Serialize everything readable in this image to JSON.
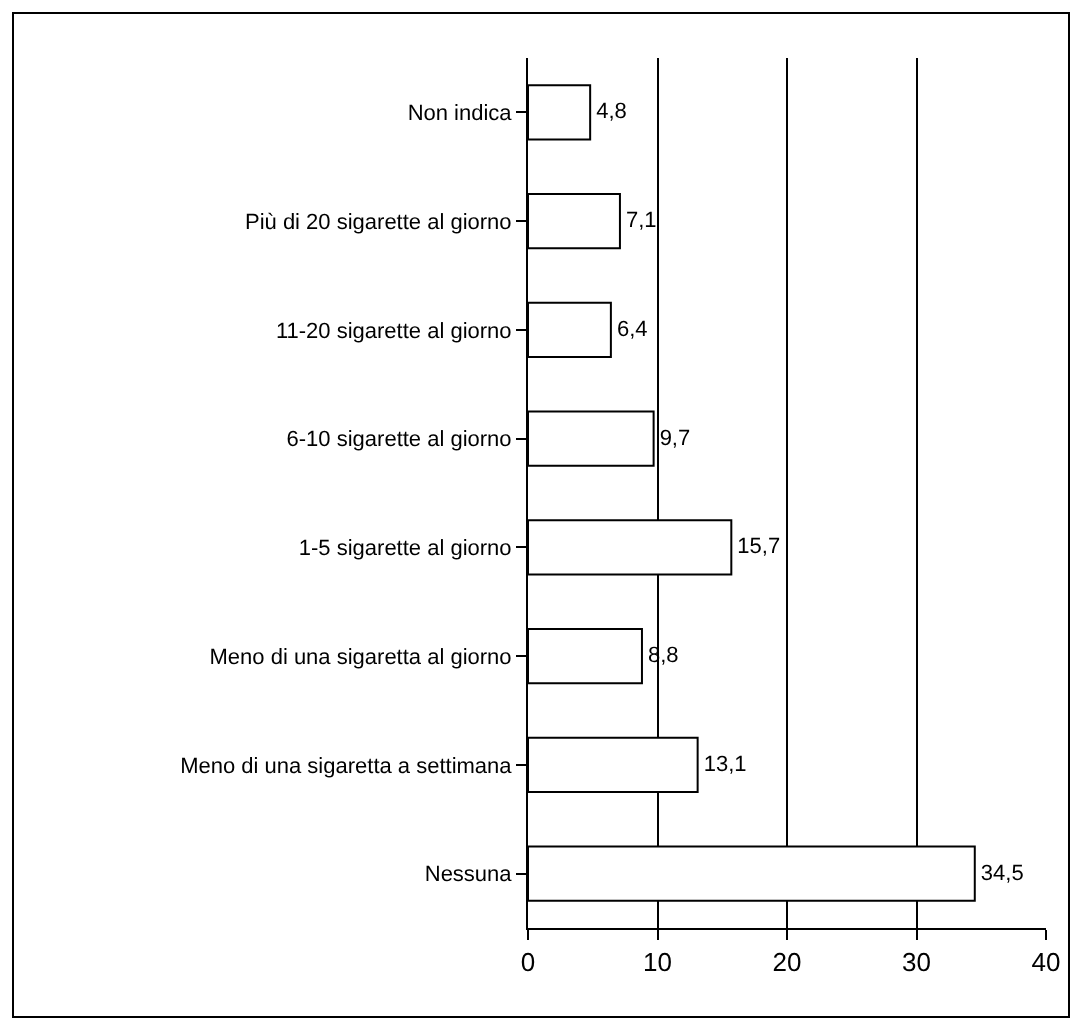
{
  "chart_data": {
    "type": "bar",
    "orientation": "horizontal",
    "categories": [
      "Non indica",
      "Più di 20 sigarette al giorno",
      "11-20 sigarette al giorno",
      "6-10 sigarette al giorno",
      "1-5 sigarette al giorno",
      "Meno di una sigaretta al giorno",
      "Meno di una sigaretta a settimana",
      "Nessuna"
    ],
    "values": [
      4.8,
      7.1,
      6.4,
      9.7,
      15.7,
      8.8,
      13.1,
      34.5
    ],
    "value_labels": [
      "4,8",
      "7,1",
      "6,4",
      "9,7",
      "15,7",
      "8,8",
      "13,1",
      "34,5"
    ],
    "color": "#ffffff",
    "xlim": [
      0,
      40
    ],
    "xticks": [
      0,
      10,
      20,
      30,
      40
    ],
    "grid": "x",
    "legend": false
  }
}
